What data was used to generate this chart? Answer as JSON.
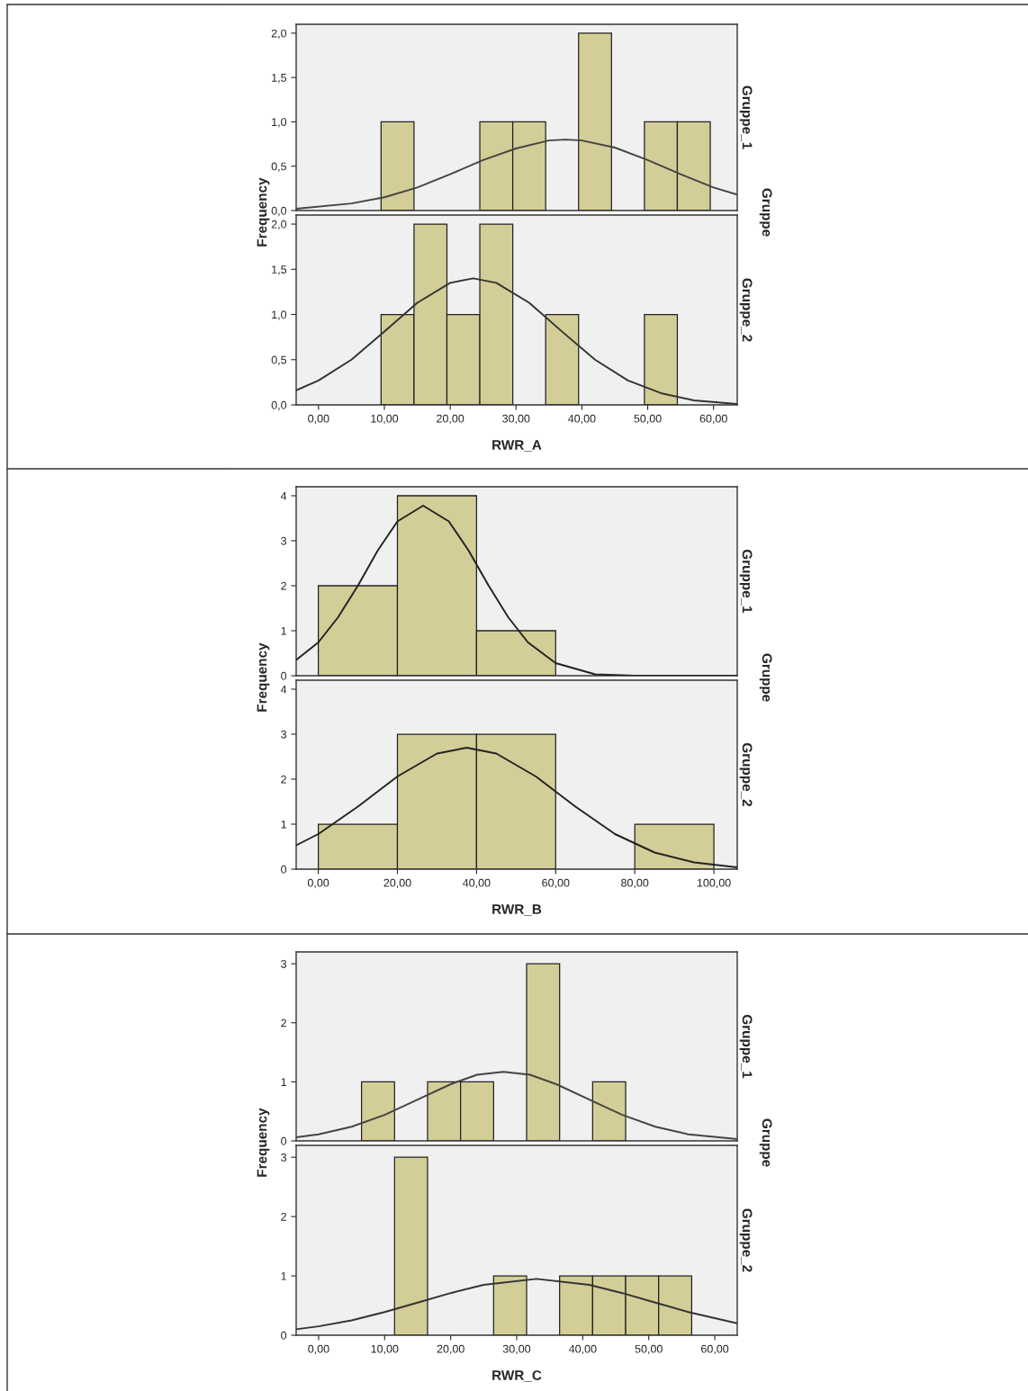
{
  "chart_data": [
    {
      "type": "histogram",
      "ylabel": "Frequency",
      "y2label": "Gruppe_1",
      "annotations": [
        "Gruppe"
      ],
      "tick_labels": "y",
      "color": "#d3ce97",
      "bins": [
        9.5,
        14.5,
        19.5,
        24.5,
        29.5,
        34.5,
        39.5,
        44.5,
        49.5,
        54.5,
        59.5
      ],
      "values": [
        1,
        0,
        0,
        1,
        1,
        0,
        2,
        0,
        1,
        1
      ],
      "series": [
        {
          "type": "line",
          "color": "#444444",
          "x": [
            -3.4,
            5,
            10,
            15,
            20,
            25,
            30,
            35,
            37.5,
            40,
            45,
            50,
            55,
            60,
            63.6
          ],
          "values": [
            0.02,
            0.08,
            0.15,
            0.26,
            0.41,
            0.57,
            0.7,
            0.79,
            0.8,
            0.79,
            0.71,
            0.57,
            0.41,
            0.26,
            0.18
          ]
        }
      ],
      "xlim": [
        -3.4,
        63.6
      ],
      "ylim": [
        0,
        2.1
      ],
      "yticks": [
        {
          "value": 0,
          "label": "0,0"
        },
        {
          "value": 0.5,
          "label": "0,5"
        },
        {
          "value": 1,
          "label": "1,0"
        },
        {
          "value": 1.5,
          "label": "1,5"
        },
        {
          "value": 2,
          "label": "2,0"
        }
      ]
    },
    {
      "type": "histogram",
      "xlabel": "RWR_A",
      "y2label": "Gruppe_2",
      "color": "#d3ce97",
      "bins": [
        9.5,
        14.5,
        19.5,
        24.5,
        29.5,
        34.5,
        39.5,
        44.5,
        49.5,
        54.5
      ],
      "values": [
        1,
        2,
        1,
        2,
        0,
        1,
        0,
        0,
        1
      ],
      "series": [
        {
          "type": "line",
          "color": "#333333",
          "x": [
            -3.4,
            0,
            5,
            10,
            15,
            20,
            23.5,
            27,
            32,
            37,
            42,
            47,
            52,
            57,
            63.6
          ],
          "values": [
            0.16,
            0.27,
            0.5,
            0.81,
            1.13,
            1.35,
            1.4,
            1.35,
            1.13,
            0.81,
            0.5,
            0.27,
            0.13,
            0.05,
            0.01
          ]
        }
      ],
      "xlim": [
        -3.4,
        63.6
      ],
      "ylim": [
        0,
        2.1
      ],
      "xticks": [
        {
          "value": 0,
          "label": "0,00"
        },
        {
          "value": 10,
          "label": "10,00"
        },
        {
          "value": 20,
          "label": "20,00"
        },
        {
          "value": 30,
          "label": "30,00"
        },
        {
          "value": 40,
          "label": "40,00"
        },
        {
          "value": 50,
          "label": "50,00"
        },
        {
          "value": 60,
          "label": "60,00"
        }
      ],
      "yticks": [
        {
          "value": 0,
          "label": "0,0"
        },
        {
          "value": 0.5,
          "label": "0,5"
        },
        {
          "value": 1,
          "label": "1,0"
        },
        {
          "value": 1.5,
          "label": "1,5"
        },
        {
          "value": 2,
          "label": "2,0"
        }
      ]
    },
    {
      "type": "histogram",
      "ylabel": "Frequency",
      "y2label": "Gruppe_1",
      "annotations": [
        "Gruppe"
      ],
      "tick_labels": "y",
      "color": "#d3ce97",
      "bins": [
        0,
        20,
        40,
        60
      ],
      "values": [
        2,
        4,
        1
      ],
      "series": [
        {
          "type": "line",
          "color": "#222222",
          "x": [
            -5.6,
            0,
            5,
            10,
            15,
            20,
            26.5,
            33,
            38,
            43,
            48,
            53,
            60,
            70,
            80,
            105.9
          ],
          "values": [
            0.35,
            0.74,
            1.3,
            2.0,
            2.78,
            3.43,
            3.78,
            3.43,
            2.78,
            2.01,
            1.3,
            0.74,
            0.28,
            0.03,
            0,
            0
          ]
        }
      ],
      "xlim": [
        -5.6,
        105.9
      ],
      "ylim": [
        0,
        4.2
      ],
      "yticks": [
        0,
        1,
        2,
        3,
        4
      ]
    },
    {
      "type": "histogram",
      "xlabel": "RWR_B",
      "y2label": "Gruppe_2",
      "color": "#d3ce97",
      "bins": [
        0,
        20,
        40,
        60,
        80,
        100
      ],
      "values": [
        1,
        3,
        3,
        0,
        1
      ],
      "series": [
        {
          "type": "line",
          "color": "#222222",
          "x": [
            -5.6,
            0,
            10,
            20,
            30,
            37.5,
            45,
            55,
            65,
            75,
            85,
            95,
            105.9
          ],
          "values": [
            0.53,
            0.78,
            1.39,
            2.06,
            2.57,
            2.7,
            2.57,
            2.06,
            1.39,
            0.78,
            0.37,
            0.15,
            0.04
          ]
        }
      ],
      "xlim": [
        -5.6,
        105.9
      ],
      "ylim": [
        0,
        4.2
      ],
      "xticks": [
        {
          "value": 0,
          "label": "0,00"
        },
        {
          "value": 20,
          "label": "20,00"
        },
        {
          "value": 40,
          "label": "40,00"
        },
        {
          "value": 60,
          "label": "60,00"
        },
        {
          "value": 80,
          "label": "80,00"
        },
        {
          "value": 100,
          "label": "100,00"
        }
      ],
      "yticks": [
        0,
        1,
        2,
        3,
        4
      ]
    },
    {
      "type": "histogram",
      "ylabel": "Frequency",
      "y2label": "Gruppe_1",
      "annotations": [
        "Gruppe"
      ],
      "tick_labels": "y",
      "color": "#d3ce97",
      "bins": [
        6.5,
        11.5,
        16.5,
        21.5,
        26.5,
        31.5,
        36.5,
        41.5,
        46.5
      ],
      "values": [
        1,
        0,
        1,
        1,
        0,
        3,
        0,
        1
      ],
      "series": [
        {
          "type": "line",
          "color": "#444444",
          "x": [
            -3.4,
            0,
            5,
            10,
            15,
            20,
            24,
            28,
            32,
            36,
            41,
            46,
            51,
            56,
            63.4
          ],
          "values": [
            0.06,
            0.11,
            0.24,
            0.44,
            0.7,
            0.96,
            1.12,
            1.17,
            1.12,
            0.96,
            0.7,
            0.44,
            0.24,
            0.11,
            0.03
          ]
        }
      ],
      "xlim": [
        -3.4,
        63.4
      ],
      "ylim": [
        0,
        3.2
      ],
      "yticks": [
        0,
        1,
        2,
        3
      ]
    },
    {
      "type": "histogram",
      "xlabel": "RWR_C",
      "y2label": "Gruppe_2",
      "color": "#d3ce97",
      "bins": [
        11.5,
        16.5,
        21.5,
        26.5,
        31.5,
        36.5,
        41.5,
        46.5,
        51.5,
        56.5
      ],
      "values": [
        3,
        0,
        0,
        1,
        0,
        1,
        1,
        1,
        1
      ],
      "series": [
        {
          "type": "line",
          "color": "#333333",
          "x": [
            -3.4,
            0,
            5,
            10,
            15,
            20,
            25,
            33,
            41,
            46,
            51,
            56,
            63.4
          ],
          "values": [
            0.1,
            0.15,
            0.25,
            0.39,
            0.55,
            0.71,
            0.85,
            0.95,
            0.85,
            0.71,
            0.55,
            0.39,
            0.2
          ]
        }
      ],
      "xlim": [
        -3.4,
        63.4
      ],
      "ylim": [
        0,
        3.2
      ],
      "xticks": [
        {
          "value": 0,
          "label": "0,00"
        },
        {
          "value": 10,
          "label": "10,00"
        },
        {
          "value": 20,
          "label": "20,00"
        },
        {
          "value": 30,
          "label": "30,00"
        },
        {
          "value": 40,
          "label": "40,00"
        },
        {
          "value": 50,
          "label": "50,00"
        },
        {
          "value": 60,
          "label": "60,00"
        }
      ],
      "yticks": [
        0,
        1,
        2,
        3
      ]
    }
  ]
}
